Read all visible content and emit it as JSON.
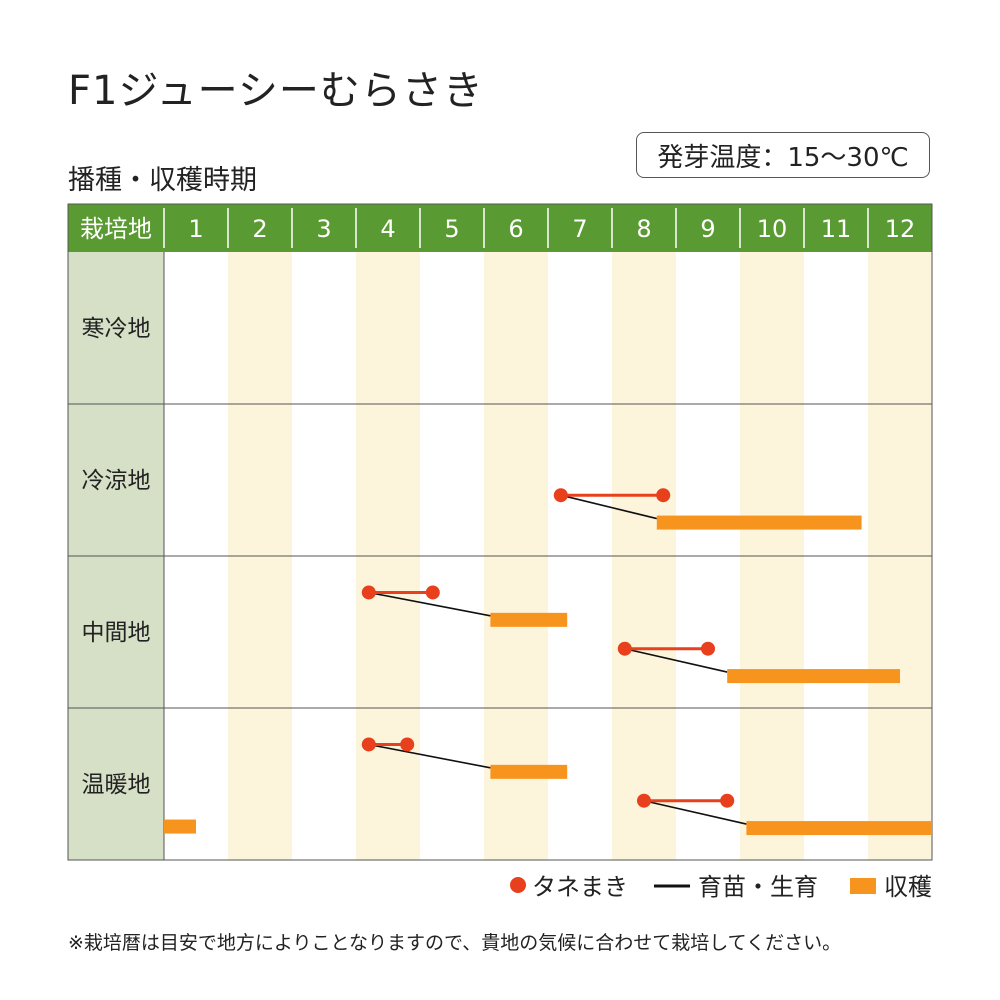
{
  "title": "F1ジューシーむらさき",
  "subtitle": "播種・収穫時期",
  "germination_badge": "発芽温度：15～30℃",
  "note": "※栽培暦は目安で地方によりことなりますので、貴地の気候に合わせて栽培してください。",
  "colors": {
    "header_green": "#5a9a32",
    "region_column": "#d5e0c7",
    "alt_month_stripe": "#fdf4dc",
    "sowing_red": "#e8401c",
    "seedling_black": "#111111",
    "harvest_orange": "#f7941d",
    "grid_line": "#555555"
  },
  "chart_data": {
    "type": "gantt",
    "header_label": "栽培地",
    "months": [
      "1",
      "2",
      "3",
      "4",
      "5",
      "6",
      "7",
      "8",
      "9",
      "10",
      "11",
      "12"
    ],
    "regions": [
      {
        "name": "寒冷地",
        "schedules": []
      },
      {
        "name": "冷涼地",
        "schedules": [
          {
            "sowing": [
              7.2,
              8.8
            ],
            "harvest": [
              8.7,
              11.9
            ]
          }
        ]
      },
      {
        "name": "中間地",
        "schedules": [
          {
            "sowing": [
              4.2,
              5.2
            ],
            "harvest": [
              6.1,
              7.3
            ]
          },
          {
            "sowing": [
              8.2,
              9.5
            ],
            "harvest": [
              9.8,
              12.5
            ]
          }
        ]
      },
      {
        "name": "温暖地",
        "schedules": [
          {
            "sowing": [
              4.2,
              4.8
            ],
            "harvest": [
              6.1,
              7.3
            ]
          },
          {
            "sowing": [
              8.5,
              9.8
            ],
            "harvest": [
              10.1,
              13.0
            ]
          },
          {
            "sowing": null,
            "harvest": [
              1.0,
              1.5
            ]
          }
        ]
      }
    ],
    "legend": [
      {
        "key": "sowing",
        "label": "タネまき"
      },
      {
        "key": "seedling",
        "label": "育苗・生育"
      },
      {
        "key": "harvest",
        "label": "収穫"
      }
    ],
    "legend_position": "bottom-right"
  }
}
